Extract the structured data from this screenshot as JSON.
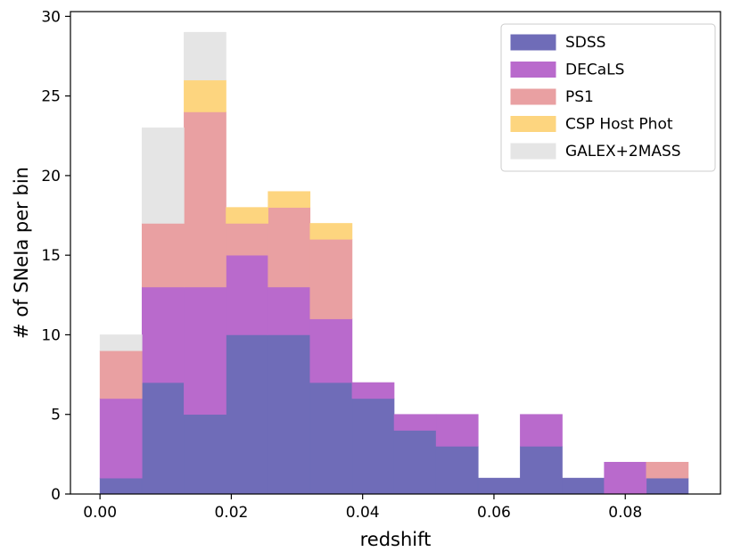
{
  "chart_data": {
    "type": "bar",
    "subtype": "stacked-histogram",
    "xlabel": "redshift",
    "ylabel": "# of SNeIa per bin",
    "xlim": [
      -0.0045,
      0.0945
    ],
    "ylim": [
      0,
      30.3
    ],
    "xticks": [
      0.0,
      0.02,
      0.04,
      0.06,
      0.08
    ],
    "xtick_labels": [
      "0.00",
      "0.02",
      "0.04",
      "0.06",
      "0.08"
    ],
    "yticks": [
      0,
      5,
      10,
      15,
      20,
      25,
      30
    ],
    "ytick_labels": [
      "0",
      "5",
      "10",
      "15",
      "20",
      "25",
      "30"
    ],
    "bin_edges": [
      0.0,
      0.0064,
      0.0128,
      0.0192,
      0.0256,
      0.032,
      0.0384,
      0.0448,
      0.0512,
      0.0576,
      0.064,
      0.0704,
      0.0768,
      0.0832,
      0.0896
    ],
    "grid": false,
    "legend_position": "top-right",
    "series": [
      {
        "name": "SDSS",
        "color": "#6f6cb8",
        "values": [
          1,
          7,
          5,
          10,
          10,
          7,
          6,
          4,
          3,
          1,
          3,
          1,
          0,
          1
        ]
      },
      {
        "name": "DECaLS",
        "color": "#b96acc",
        "values": [
          5,
          6,
          8,
          5,
          3,
          4,
          1,
          1,
          2,
          0,
          2,
          0,
          2,
          0
        ]
      },
      {
        "name": "PS1",
        "color": "#e9a0a2",
        "values": [
          3,
          4,
          11,
          2,
          5,
          5,
          0,
          0,
          0,
          0,
          0,
          0,
          0,
          1
        ]
      },
      {
        "name": "CSP Host Phot",
        "color": "#fdd57f",
        "values": [
          0,
          0,
          2,
          1,
          1,
          1,
          0,
          0,
          0,
          0,
          0,
          0,
          0,
          0
        ]
      },
      {
        "name": "GALEX+2MASS",
        "color": "#e5e5e5",
        "values": [
          1,
          6,
          3,
          0,
          0,
          0,
          0,
          0,
          0,
          0,
          0,
          0,
          0,
          0
        ]
      }
    ]
  }
}
